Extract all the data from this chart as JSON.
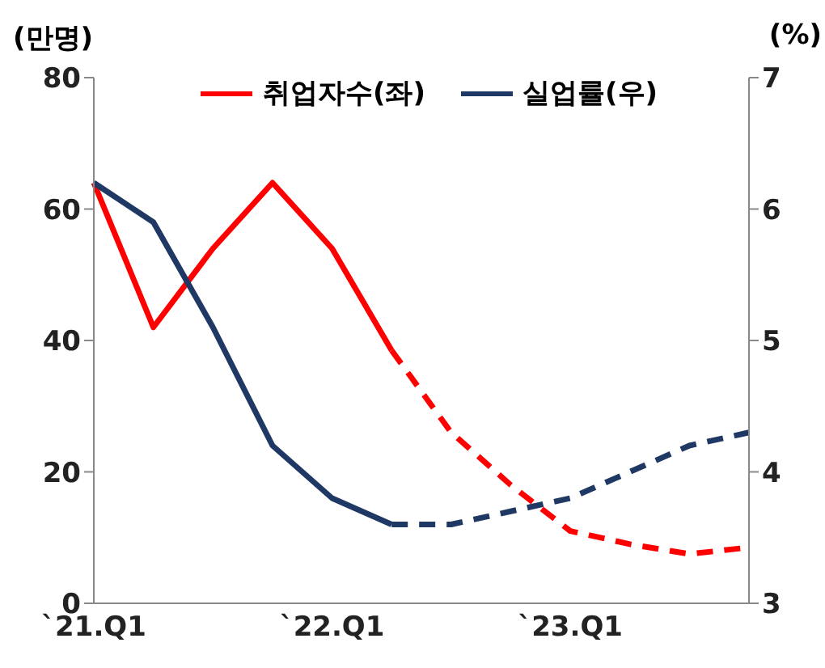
{
  "chart_data": {
    "type": "line",
    "ylabel": "(만명)",
    "y2label": "(%)",
    "categories": [
      "`21.Q1",
      null,
      null,
      null,
      "`22.Q1",
      null,
      null,
      null,
      "`23.Q1",
      null,
      null,
      null
    ],
    "ylim": [
      0,
      80
    ],
    "yticks": [
      0,
      20,
      40,
      60,
      80
    ],
    "y2lim": [
      3,
      7
    ],
    "y2ticks": [
      3,
      4,
      5,
      6,
      7
    ],
    "grid": false,
    "legend": "top",
    "marker": "none",
    "series": [
      {
        "name": "취업자수(좌)",
        "color": "#ff0000",
        "line_style": "solid",
        "values": [
          64,
          42,
          54,
          64,
          54,
          38.5,
          null,
          null,
          null,
          null,
          null,
          null
        ]
      },
      {
        "color": "#ff0000",
        "line_style": "dashed",
        "values": [
          null,
          null,
          null,
          null,
          null,
          38.5,
          26,
          18,
          11,
          9,
          7.5,
          8.5
        ]
      },
      {
        "name": "실업률(우)",
        "color": "#1f3864",
        "axis": "y2",
        "line_style": "solid",
        "values": [
          6.2,
          5.9,
          5.1,
          4.2,
          3.8,
          3.6,
          null,
          null,
          null,
          null,
          null,
          null
        ]
      },
      {
        "color": "#1f3864",
        "axis": "y2",
        "line_style": "dashed",
        "values": [
          null,
          null,
          null,
          null,
          null,
          3.6,
          3.6,
          3.7,
          3.8,
          4.0,
          4.2,
          4.3
        ]
      }
    ]
  }
}
